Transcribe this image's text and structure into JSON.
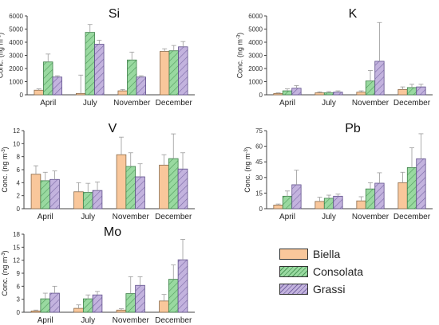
{
  "colors": {
    "biella": "#f9c79b",
    "consolata": "#99d9a0",
    "grassi": "#c3b3de",
    "axis": "#444444",
    "error": "#9a9a9a"
  },
  "legend": {
    "items": [
      {
        "label": "Biella",
        "color": "#f9c79b",
        "pattern": "none"
      },
      {
        "label": "Consolata",
        "color": "#99d9a0",
        "pattern": "hatch"
      },
      {
        "label": "Grassi",
        "color": "#c3b3de",
        "pattern": "hatch"
      }
    ]
  },
  "chart_data": [
    {
      "type": "bar",
      "title": "Si",
      "ylabel": "Conc. (ng m-3)",
      "ylim": [
        0,
        6000
      ],
      "yticks": [
        "0",
        "1000",
        "2000",
        "3000",
        "4000",
        "5000",
        "6000"
      ],
      "categories": [
        "April",
        "July",
        "November",
        "December"
      ],
      "series": [
        {
          "name": "Biella",
          "values": [
            350,
            100,
            300,
            3300
          ],
          "errors": [
            100,
            1400,
            100,
            200
          ]
        },
        {
          "name": "Consolata",
          "values": [
            2500,
            4750,
            2650,
            3350
          ],
          "errors": [
            600,
            600,
            600,
            400
          ]
        },
        {
          "name": "Grassi",
          "values": [
            1350,
            3850,
            1350,
            3650
          ],
          "errors": [
            100,
            300,
            100,
            400
          ]
        }
      ]
    },
    {
      "type": "bar",
      "title": "K",
      "ylabel": "Conc. (ng m-3)",
      "ylim": [
        0,
        6000
      ],
      "yticks": [
        "0",
        "1000",
        "2000",
        "3000",
        "4000",
        "5000",
        "6000"
      ],
      "categories": [
        "April",
        "July",
        "November",
        "December"
      ],
      "series": [
        {
          "name": "Biella",
          "values": [
            100,
            150,
            200,
            400
          ],
          "errors": [
            50,
            80,
            100,
            200
          ]
        },
        {
          "name": "Consolata",
          "values": [
            300,
            150,
            1050,
            550
          ],
          "errors": [
            150,
            100,
            800,
            250
          ]
        },
        {
          "name": "Grassi",
          "values": [
            500,
            200,
            2550,
            600
          ],
          "errors": [
            200,
            100,
            2950,
            200
          ]
        }
      ]
    },
    {
      "type": "bar",
      "title": "V",
      "ylabel": "Conc. (ng m-3)",
      "ylim": [
        0,
        12
      ],
      "yticks": [
        "0",
        "2",
        "4",
        "6",
        "8",
        "10",
        "12"
      ],
      "categories": [
        "April",
        "July",
        "November",
        "December"
      ],
      "series": [
        {
          "name": "Biella",
          "values": [
            5.3,
            2.6,
            8.3,
            6.7
          ],
          "errors": [
            1.3,
            1.4,
            2.7,
            1.6
          ]
        },
        {
          "name": "Consolata",
          "values": [
            4.3,
            2.5,
            6.5,
            7.7
          ],
          "errors": [
            1.3,
            1.4,
            2.1,
            3.8
          ]
        },
        {
          "name": "Grassi",
          "values": [
            4.5,
            2.8,
            4.9,
            6.1
          ],
          "errors": [
            1.3,
            1.3,
            2.0,
            2.5
          ]
        }
      ]
    },
    {
      "type": "bar",
      "title": "Pb",
      "ylabel": "Conc. (ng m-3)",
      "ylim": [
        0,
        75
      ],
      "yticks": [
        "0",
        "15",
        "30",
        "45",
        "60",
        "75"
      ],
      "categories": [
        "April",
        "July",
        "November",
        "December"
      ],
      "series": [
        {
          "name": "Biella",
          "values": [
            3.5,
            7,
            7.5,
            25
          ],
          "errors": [
            1,
            4,
            4,
            10
          ]
        },
        {
          "name": "Consolata",
          "values": [
            12,
            10,
            19,
            39.5
          ],
          "errors": [
            5,
            3,
            6,
            19
          ]
        },
        {
          "name": "Grassi",
          "values": [
            23,
            12,
            24.5,
            48
          ],
          "errors": [
            14,
            2,
            10,
            24
          ]
        }
      ]
    },
    {
      "type": "bar",
      "title": "Mo",
      "ylabel": "Conc. (ng m-3)",
      "ylim": [
        0,
        18
      ],
      "yticks": [
        "0",
        "3",
        "6",
        "9",
        "12",
        "15",
        "18"
      ],
      "categories": [
        "April",
        "July",
        "November",
        "December"
      ],
      "series": [
        {
          "name": "Biella",
          "values": [
            0.3,
            0.9,
            0.5,
            2.6
          ],
          "errors": [
            0.2,
            0.8,
            0.3,
            1.5
          ]
        },
        {
          "name": "Consolata",
          "values": [
            3.1,
            3.1,
            4.3,
            7.6
          ],
          "errors": [
            1.3,
            0.9,
            3.9,
            3.3
          ]
        },
        {
          "name": "Grassi",
          "values": [
            4.4,
            4.0,
            6.2,
            12.1
          ],
          "errors": [
            1.6,
            0.8,
            2.0,
            4.7
          ]
        }
      ]
    }
  ]
}
